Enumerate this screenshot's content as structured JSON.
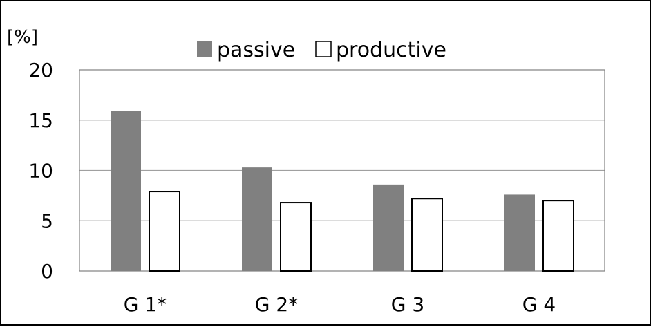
{
  "chart_data": {
    "type": "bar",
    "unit_label": "[%]",
    "categories": [
      "G 1*",
      "G 2*",
      "G 3",
      "G 4"
    ],
    "series": [
      {
        "name": "passive",
        "values": [
          15.9,
          10.3,
          8.6,
          7.6
        ],
        "color": "#808080"
      },
      {
        "name": "productive",
        "values": [
          7.9,
          6.8,
          7.2,
          7.0
        ],
        "color": "#ffffff"
      }
    ],
    "ylim": [
      0,
      20
    ],
    "yticks": [
      0,
      5,
      10,
      15,
      20
    ],
    "grid": true,
    "legend_position": "top"
  }
}
